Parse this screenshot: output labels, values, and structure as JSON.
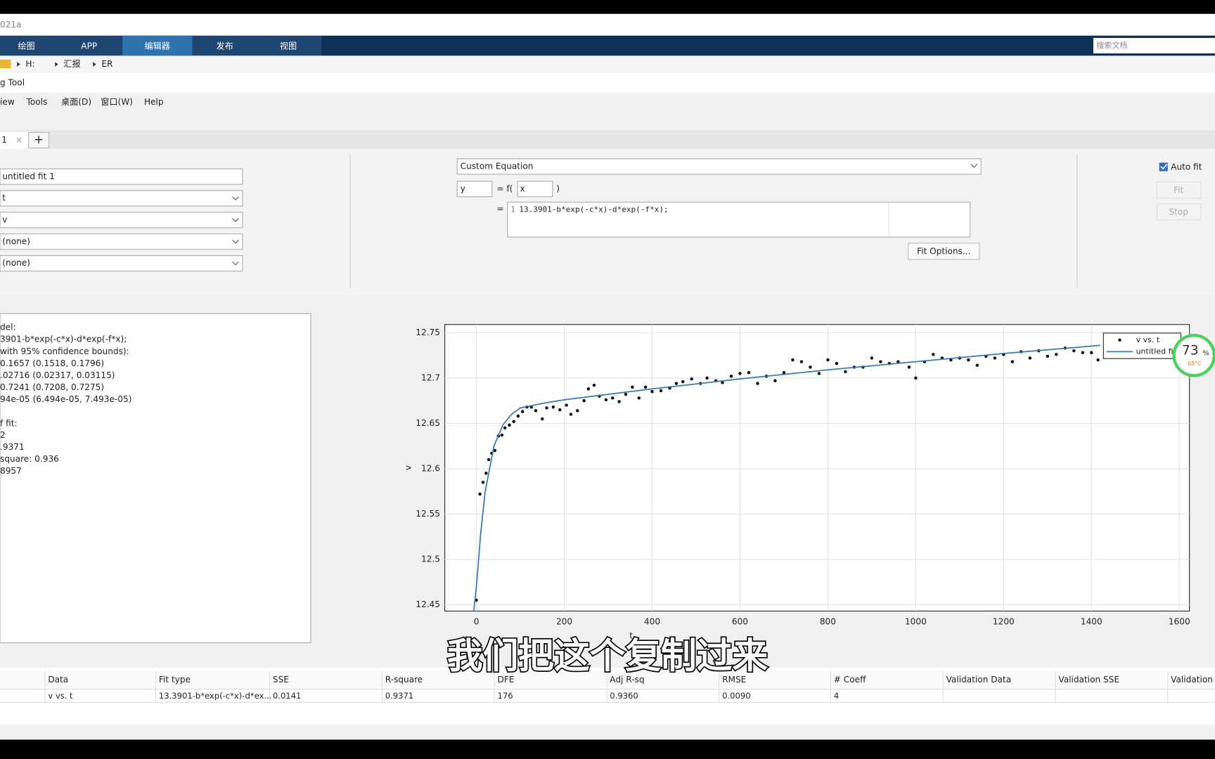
{
  "window_title": "021a",
  "ribbon_tabs": [
    "绘图",
    "APP",
    "编辑器",
    "发布",
    "视图"
  ],
  "search_placeholder": "搜索文档",
  "breadcrumb": [
    "H:",
    "汇报",
    "ER"
  ],
  "tool_title": "g Tool",
  "menu": [
    "iew",
    "Tools",
    "桌面(D)",
    "窗口(W)",
    "Help"
  ],
  "fit_tab": "1",
  "fit_name": "untitled fit 1",
  "dropdowns": [
    "t",
    "v",
    "(none)",
    "(none)"
  ],
  "fit_type": "Custom Equation",
  "equation": {
    "y": "y",
    "f": "= f(",
    "x": "x",
    "close": ")",
    "eq": "=",
    "line_no": "1",
    "text": "13.3901-b*exp(-c*x)-d*exp(-f*x);"
  },
  "buttons": {
    "auto_fit": "Auto fit",
    "fit": "Fit",
    "stop": "Stop",
    "fit_options": "Fit Options..."
  },
  "results": {
    "model": [
      "del:",
      "3901-b*exp(-c*x)-d*exp(-f*x);",
      "with 95% confidence bounds):",
      "0.1657  (0.1518, 0.1796)",
      ".02716  (0.02317, 0.03115)",
      "0.7241  (0.7208, 0.7275)",
      "94e-05  (6.494e-05, 7.493e-05)"
    ],
    "goodness": [
      "f fit:",
      "2",
      ".9371",
      "square: 0.936",
      "8957"
    ]
  },
  "chart_data": {
    "type": "scatter",
    "xlabel": "t",
    "ylabel": "v",
    "xlim": [
      -72,
      1623
    ],
    "ylim": [
      12.443,
      12.759
    ],
    "xticks": [
      0,
      200,
      400,
      600,
      800,
      1000,
      1200,
      1400,
      1600
    ],
    "yticks": [
      12.45,
      12.5,
      12.55,
      12.6,
      12.65,
      12.7,
      12.75
    ],
    "grid": true,
    "series": [
      {
        "name": "v vs. t",
        "type": "scatter",
        "color": "#000000",
        "x": [
          0,
          8,
          15,
          22,
          28,
          35,
          42,
          50,
          58,
          65,
          75,
          85,
          95,
          105,
          115,
          125,
          135,
          150,
          160,
          175,
          190,
          205,
          215,
          230,
          245,
          255,
          268,
          280,
          295,
          310,
          325,
          340,
          355,
          370,
          385,
          400,
          420,
          440,
          455,
          470,
          490,
          510,
          525,
          545,
          560,
          580,
          600,
          620,
          640,
          660,
          680,
          700,
          720,
          740,
          760,
          780,
          800,
          820,
          840,
          860,
          880,
          900,
          920,
          940,
          960,
          985,
          1000,
          1020,
          1040,
          1060,
          1080,
          1100,
          1120,
          1140,
          1160,
          1180,
          1200,
          1220,
          1240,
          1260,
          1280,
          1300,
          1320,
          1340,
          1360,
          1380,
          1400,
          1415
        ],
        "values": [
          12.455,
          12.572,
          12.585,
          12.595,
          12.61,
          12.617,
          12.62,
          12.636,
          12.637,
          12.645,
          12.648,
          12.652,
          12.658,
          12.663,
          12.668,
          12.668,
          12.664,
          12.655,
          12.667,
          12.668,
          12.665,
          12.67,
          12.66,
          12.664,
          12.675,
          12.688,
          12.692,
          12.68,
          12.676,
          12.678,
          12.674,
          12.682,
          12.69,
          12.678,
          12.69,
          12.685,
          12.686,
          12.689,
          12.694,
          12.696,
          12.699,
          12.694,
          12.7,
          12.697,
          12.695,
          12.702,
          12.705,
          12.706,
          12.694,
          12.702,
          12.697,
          12.706,
          12.72,
          12.718,
          12.712,
          12.705,
          12.72,
          12.716,
          12.707,
          12.712,
          12.712,
          12.722,
          12.718,
          12.716,
          12.718,
          12.712,
          12.7,
          12.718,
          12.726,
          12.722,
          12.72,
          12.722,
          12.72,
          12.714,
          12.724,
          12.722,
          12.726,
          12.718,
          12.729,
          12.722,
          12.73,
          12.724,
          12.726,
          12.733,
          12.73,
          12.728,
          12.728,
          12.72
        ]
      },
      {
        "name": "untitled fit 1",
        "type": "line",
        "color": "#3a78b5",
        "x": [
          -6,
          0,
          10,
          20,
          40,
          60,
          80,
          100,
          150,
          200,
          400,
          600,
          800,
          1000,
          1200,
          1420
        ],
        "values": [
          12.443,
          12.47,
          12.53,
          12.575,
          12.625,
          12.648,
          12.66,
          12.667,
          12.672,
          12.676,
          12.688,
          12.699,
          12.709,
          12.718,
          12.727,
          12.736
        ]
      }
    ]
  },
  "table": {
    "headers": [
      "Data",
      "Fit type",
      "SSE",
      "R-square",
      "DFE",
      "Adj R-sq",
      "RMSE",
      "# Coeff",
      "Validation Data",
      "Validation SSE",
      "Validation"
    ],
    "row": [
      "v vs. t",
      "13.3901-b*exp(-c*x)-d*ex...",
      "0.0141",
      "0.9371",
      "176",
      "0.9360",
      "0.0090",
      "4"
    ]
  },
  "subtitle": "我们把这个复制过来",
  "widget": {
    "percent": "73",
    "unit": "%",
    "temp": "68°C"
  }
}
